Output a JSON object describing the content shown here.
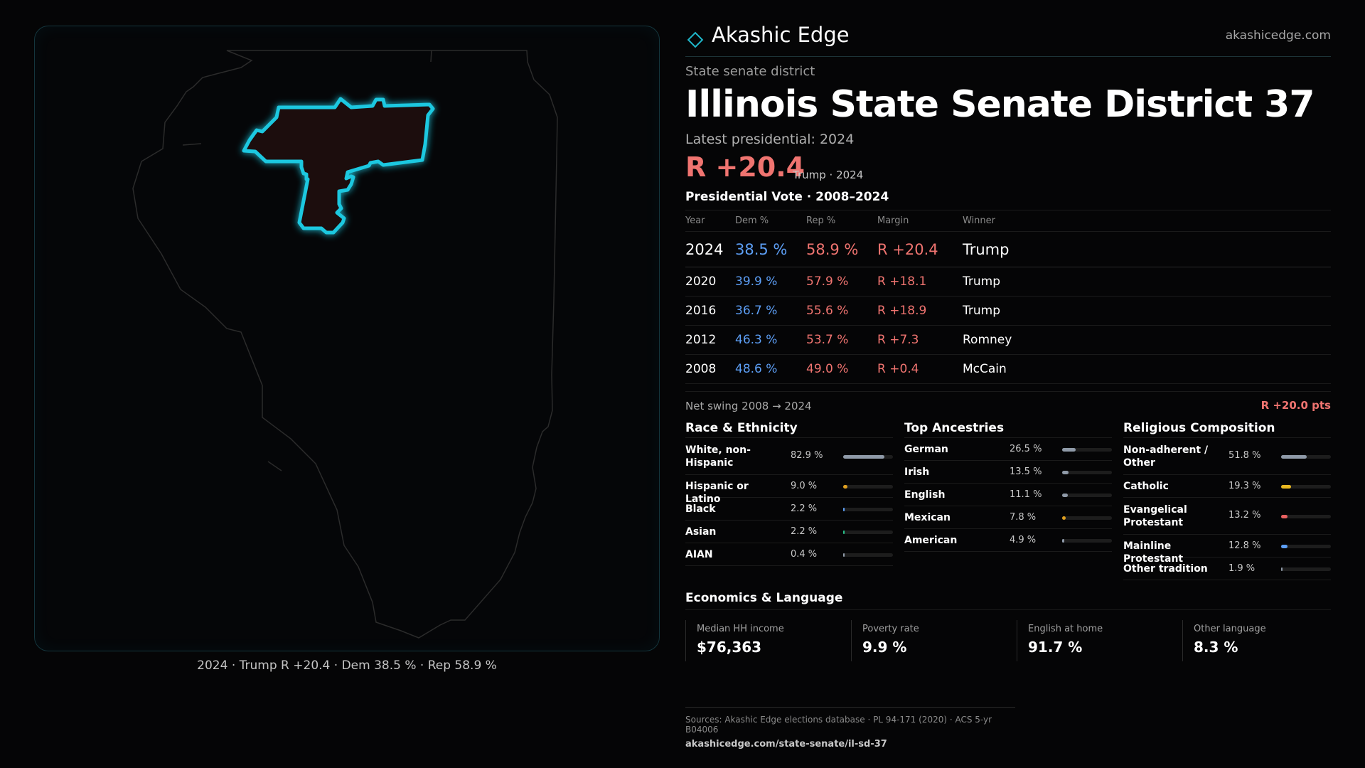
{
  "brand": {
    "name": "Akashic Edge",
    "url": "akashicedge.com",
    "accent": "#1fb6c9"
  },
  "eyebrow": "State senate district",
  "title": "Illinois State Senate District 37",
  "latest_label": "Latest presidential: 2024",
  "headline_margin": "R +20.4",
  "headline_sub": "Trump · 2024",
  "presidential": {
    "title": "Presidential Vote · 2008–2024",
    "headers": {
      "year": "Year",
      "dem": "Dem %",
      "rep": "Rep %",
      "margin": "Margin",
      "winner": "Winner"
    },
    "rows": [
      {
        "year": "2024",
        "dem": "38.5 %",
        "rep": "58.9 %",
        "margin": "R +20.4",
        "winner": "Trump"
      },
      {
        "year": "2020",
        "dem": "39.9 %",
        "rep": "57.9 %",
        "margin": "R +18.1",
        "winner": "Trump"
      },
      {
        "year": "2016",
        "dem": "36.7 %",
        "rep": "55.6 %",
        "margin": "R +18.9",
        "winner": "Trump"
      },
      {
        "year": "2012",
        "dem": "46.3 %",
        "rep": "53.7 %",
        "margin": "R +7.3",
        "winner": "Romney"
      },
      {
        "year": "2008",
        "dem": "48.6 %",
        "rep": "49.0 %",
        "margin": "R +0.4",
        "winner": "McCain"
      }
    ]
  },
  "swing": {
    "label": "Net swing 2008 → 2024",
    "value": "R +20.0 pts"
  },
  "race": {
    "title": "Race & Ethnicity",
    "items": [
      {
        "label": "White, non-Hispanic",
        "value": "82.9 %",
        "pct": 82.9,
        "color": "#8f9aa8"
      },
      {
        "label": "Hispanic or Latino",
        "value": "9.0 %",
        "pct": 9.0,
        "color": "#e0a020"
      },
      {
        "label": "Black",
        "value": "2.2 %",
        "pct": 2.2,
        "color": "#5d9ff6"
      },
      {
        "label": "Asian",
        "value": "2.2 %",
        "pct": 2.2,
        "color": "#28c08a"
      },
      {
        "label": "AIAN",
        "value": "0.4 %",
        "pct": 0.4,
        "color": "#8f9aa8"
      }
    ]
  },
  "ancestry": {
    "title": "Top Ancestries",
    "items": [
      {
        "label": "German",
        "value": "26.5 %",
        "pct": 26.5,
        "color": "#8f9aa8"
      },
      {
        "label": "Irish",
        "value": "13.5 %",
        "pct": 13.5,
        "color": "#8f9aa8"
      },
      {
        "label": "English",
        "value": "11.1 %",
        "pct": 11.1,
        "color": "#8f9aa8"
      },
      {
        "label": "Mexican",
        "value": "7.8 %",
        "pct": 7.8,
        "color": "#e0a020"
      },
      {
        "label": "American",
        "value": "4.9 %",
        "pct": 4.9,
        "color": "#8f9aa8"
      }
    ]
  },
  "religion": {
    "title": "Religious Composition",
    "items": [
      {
        "label": "Non-adherent / Other",
        "value": "51.8 %",
        "pct": 51.8,
        "color": "#8f9aa8"
      },
      {
        "label": "Catholic",
        "value": "19.3 %",
        "pct": 19.3,
        "color": "#e8b820"
      },
      {
        "label": "Evangelical Protestant",
        "value": "13.2 %",
        "pct": 13.2,
        "color": "#e86060"
      },
      {
        "label": "Mainline Protestant",
        "value": "12.8 %",
        "pct": 12.8,
        "color": "#5d9ff6"
      },
      {
        "label": "Other tradition",
        "value": "1.9 %",
        "pct": 1.9,
        "color": "#8f9aa8"
      }
    ]
  },
  "economics": {
    "title": "Economics & Language",
    "items": [
      {
        "label": "Median HH income",
        "value": "$76,363"
      },
      {
        "label": "Poverty rate",
        "value": "9.9 %"
      },
      {
        "label": "English at home",
        "value": "91.7 %"
      },
      {
        "label": "Other language",
        "value": "8.3 %"
      }
    ]
  },
  "map_caption": "2024 · Trump R +20.4 · Dem 38.5 % · Rep 58.9 %",
  "sources": {
    "line": "Sources: Akashic Edge elections database · PL 94-171 (2020) · ACS 5-yr B04006",
    "url": "akashicedge.com/state-senate/il-sd-37"
  }
}
